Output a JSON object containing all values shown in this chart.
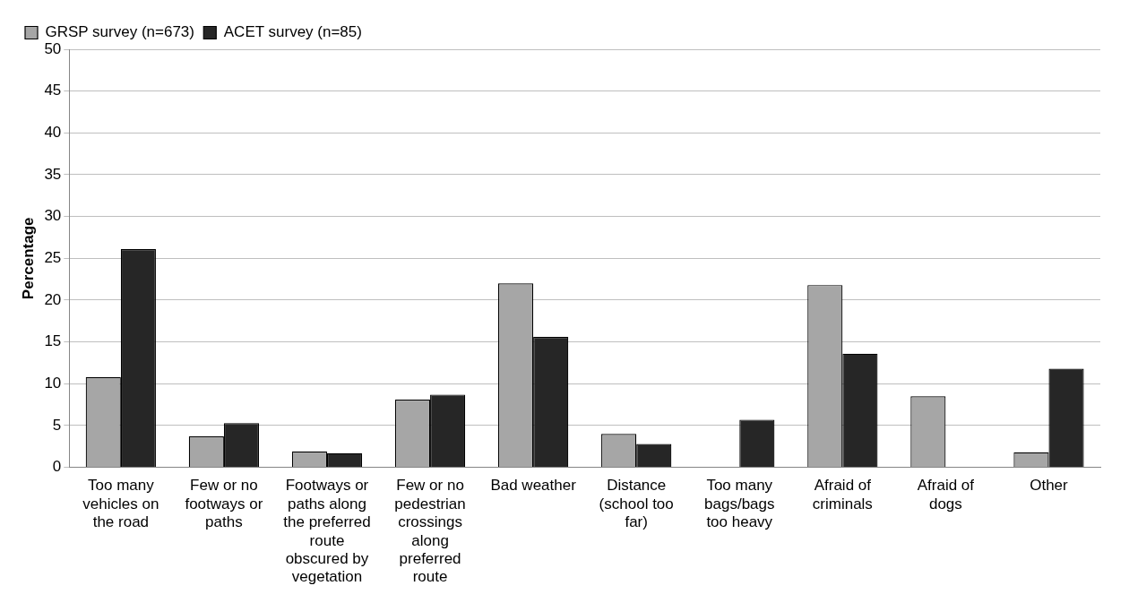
{
  "chart_data": {
    "type": "bar",
    "ylabel": "Percentage",
    "categories": [
      "Too many vehicles on the road",
      "Few or no footways or paths",
      "Footways or paths along the preferred route obscured by vegetation",
      "Few or no pedestrian crossings along preferred route",
      "Bad weather",
      "Distance (school too far)",
      "Too many bags/bags too heavy",
      "Afraid of criminals",
      "Afraid of dogs",
      "Other"
    ],
    "series": [
      {
        "name": "GRSP survey (n=673)",
        "color": "#a6a6a6",
        "values": [
          10.8,
          3.7,
          1.9,
          8.1,
          22.0,
          4.0,
          0,
          21.8,
          8.5,
          1.8
        ]
      },
      {
        "name": "ACET survey (n=85)",
        "color": "#262626",
        "values": [
          26.1,
          5.3,
          1.7,
          8.7,
          15.6,
          2.8,
          5.7,
          13.6,
          0,
          11.8
        ]
      }
    ],
    "ylim": [
      0,
      50
    ],
    "yticks": [
      0,
      5,
      10,
      15,
      20,
      25,
      30,
      35,
      40,
      45,
      50
    ],
    "grid": "y",
    "legend": "top left"
  }
}
